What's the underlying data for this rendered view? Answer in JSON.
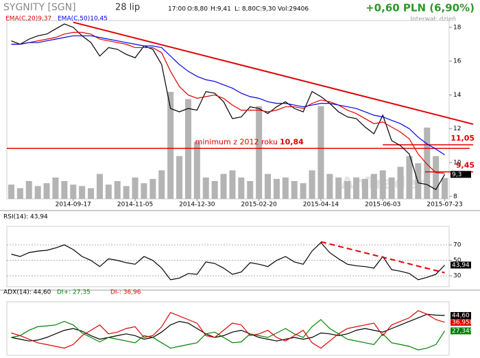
{
  "header": {
    "title": "SYGNITY [SGN]",
    "date": "28 lip",
    "time": "17:00",
    "open": "O:8,80",
    "high": "H:9,41",
    "low": "L: 8,80",
    "close": "C:9,30",
    "volume": "Vol:29406",
    "change": "+0,60 PLN (6,90%)",
    "interval": "Interwał: dzień",
    "watermark": "AnTrader"
  },
  "chart_data": [
    {
      "type": "line",
      "categories": [
        null,
        null,
        null,
        null,
        null,
        null,
        null,
        "2014-09-17",
        null,
        null,
        null,
        null,
        null,
        null,
        "2014-11-05",
        null,
        null,
        null,
        null,
        null,
        null,
        "2014-12-30",
        null,
        null,
        null,
        null,
        null,
        null,
        "2015-02-20",
        null,
        null,
        null,
        null,
        null,
        null,
        "2015-04-14",
        null,
        null,
        null,
        null,
        null,
        null,
        "2015-06-03",
        null,
        null,
        null,
        null,
        null,
        null,
        "2015-07-23"
      ],
      "ylim": [
        7.85,
        18.4
      ],
      "yticks": [
        8,
        10,
        12,
        14,
        16,
        18
      ],
      "grid": false,
      "series": [
        {
          "color": "#000000",
          "last_label": "9,3",
          "values": [
            17.2,
            17.0,
            17.3,
            17.5,
            17.6,
            17.9,
            18.2,
            18.0,
            17.5,
            17.1,
            16.3,
            16.8,
            16.7,
            16.4,
            16.2,
            16.9,
            16.7,
            15.8,
            13.2,
            13.0,
            13.2,
            13.1,
            14.2,
            14.1,
            13.6,
            12.6,
            12.7,
            13.3,
            13.2,
            12.9,
            13.3,
            13.6,
            13.2,
            13.0,
            14.2,
            13.9,
            13.5,
            13.0,
            12.7,
            12.6,
            12.1,
            11.7,
            12.8,
            11.3,
            11.0,
            10.5,
            8.8,
            8.7,
            8.4,
            9.3
          ]
        },
        {
          "name": "EMA(C,20)9,37",
          "color": "#e00000",
          "values": [
            17.0,
            17.0,
            17.1,
            17.2,
            17.3,
            17.4,
            17.6,
            17.7,
            17.7,
            17.6,
            17.3,
            17.2,
            17.1,
            17.0,
            16.8,
            16.8,
            16.8,
            16.5,
            15.4,
            14.5,
            14.0,
            13.8,
            13.9,
            14.0,
            13.8,
            13.4,
            13.1,
            13.1,
            13.1,
            13.0,
            13.1,
            13.3,
            13.3,
            13.2,
            13.5,
            13.7,
            13.6,
            13.4,
            13.1,
            12.9,
            12.6,
            12.3,
            12.4,
            12.1,
            11.8,
            11.4,
            10.5,
            9.9,
            9.4,
            9.37
          ]
        },
        {
          "name": "EMA(C,50)10,45",
          "color": "#0000e0",
          "values": [
            17.0,
            17.0,
            17.1,
            17.1,
            17.2,
            17.3,
            17.4,
            17.5,
            17.5,
            17.5,
            17.4,
            17.3,
            17.2,
            17.1,
            17.0,
            16.9,
            16.9,
            16.8,
            16.3,
            15.8,
            15.4,
            15.1,
            14.9,
            14.8,
            14.6,
            14.4,
            14.1,
            13.9,
            13.8,
            13.6,
            13.5,
            13.5,
            13.4,
            13.3,
            13.4,
            13.5,
            13.5,
            13.4,
            13.3,
            13.2,
            13.0,
            12.8,
            12.7,
            12.5,
            12.3,
            12.0,
            11.5,
            11.1,
            10.8,
            10.45
          ]
        }
      ],
      "volume": {
        "color": "#b4b4b4",
        "lim": [
          0,
          250000
        ],
        "values": [
          20000,
          15000,
          25000,
          18000,
          22000,
          30000,
          25000,
          20000,
          18000,
          15000,
          35000,
          20000,
          25000,
          18000,
          30000,
          22000,
          28000,
          40000,
          150000,
          60000,
          140000,
          80000,
          30000,
          25000,
          35000,
          40000,
          30000,
          25000,
          130000,
          35000,
          28000,
          30000,
          25000,
          22000,
          40000,
          130000,
          35000,
          30000,
          25000,
          30000,
          28000,
          35000,
          40000,
          30000,
          45000,
          60000,
          50000,
          100000,
          60000,
          29406
        ]
      },
      "trendline": {
        "color": "#e00000",
        "x": [
          "2014-09-17",
          "2015-07-23"
        ],
        "values": [
          18.3,
          12.7
        ]
      },
      "hlines": [
        {
          "value": 10.84,
          "text": "minimum z 2012 roku",
          "label": "10,84",
          "color": "#e00000"
        },
        {
          "value": 11.05,
          "from": "2015-06-03",
          "label": "11,05",
          "color": "#e00000"
        },
        {
          "value": 9.45,
          "label": "9,45",
          "color": "#e00000"
        }
      ]
    },
    {
      "type": "line",
      "ylim": [
        16,
        94
      ],
      "yticks": [
        30,
        50,
        70
      ],
      "grid": true,
      "series": [
        {
          "name": "RSI(14): 43,94",
          "color": "#000000",
          "last_label": "43,94",
          "values": [
            58,
            55,
            60,
            62,
            63,
            66,
            70,
            64,
            55,
            50,
            42,
            52,
            50,
            47,
            45,
            55,
            50,
            40,
            25,
            27,
            33,
            32,
            48,
            46,
            40,
            32,
            35,
            47,
            45,
            42,
            50,
            55,
            48,
            45,
            62,
            73,
            60,
            52,
            45,
            43,
            42,
            40,
            55,
            38,
            36,
            33,
            25,
            28,
            32,
            43.94
          ]
        }
      ],
      "trendline": {
        "color": "#e00000",
        "x": [
          "2015-04-14",
          "2015-07-23"
        ],
        "values": [
          74,
          34
        ]
      }
    },
    {
      "type": "line",
      "ylim": [
        0,
        60
      ],
      "grid": false,
      "series": [
        {
          "name": "ADX(14): 44,60",
          "color": "#000000",
          "last_label": "44,60",
          "values": [
            20,
            18,
            16,
            17,
            20,
            24,
            28,
            30,
            27,
            22,
            18,
            20,
            22,
            24,
            22,
            18,
            20,
            26,
            34,
            38,
            36,
            30,
            24,
            20,
            22,
            26,
            28,
            24,
            20,
            18,
            16,
            18,
            20,
            18,
            20,
            25,
            24,
            22,
            24,
            28,
            30,
            28,
            26,
            30,
            34,
            38,
            42,
            46,
            45,
            44.6
          ]
        },
        {
          "name": "DI+: 27,35",
          "color": "#008000",
          "last_label": "27,349",
          "values": [
            20,
            22,
            28,
            32,
            33,
            34,
            38,
            34,
            25,
            20,
            15,
            20,
            18,
            16,
            14,
            22,
            20,
            14,
            8,
            10,
            12,
            14,
            24,
            26,
            20,
            14,
            15,
            24,
            22,
            20,
            25,
            30,
            24,
            20,
            32,
            40,
            30,
            24,
            18,
            16,
            14,
            12,
            24,
            14,
            12,
            10,
            6,
            8,
            12,
            27.349
          ]
        },
        {
          "name": "DI-: 36,96",
          "color": "#e00000",
          "last_label": "36,958",
          "values": [
            25,
            22,
            18,
            14,
            12,
            10,
            8,
            12,
            22,
            28,
            34,
            24,
            26,
            30,
            32,
            20,
            22,
            32,
            48,
            44,
            40,
            36,
            22,
            20,
            28,
            36,
            34,
            22,
            24,
            28,
            20,
            16,
            22,
            28,
            14,
            8,
            16,
            24,
            30,
            32,
            34,
            36,
            22,
            34,
            38,
            42,
            50,
            46,
            40,
            36.958
          ]
        }
      ]
    }
  ]
}
